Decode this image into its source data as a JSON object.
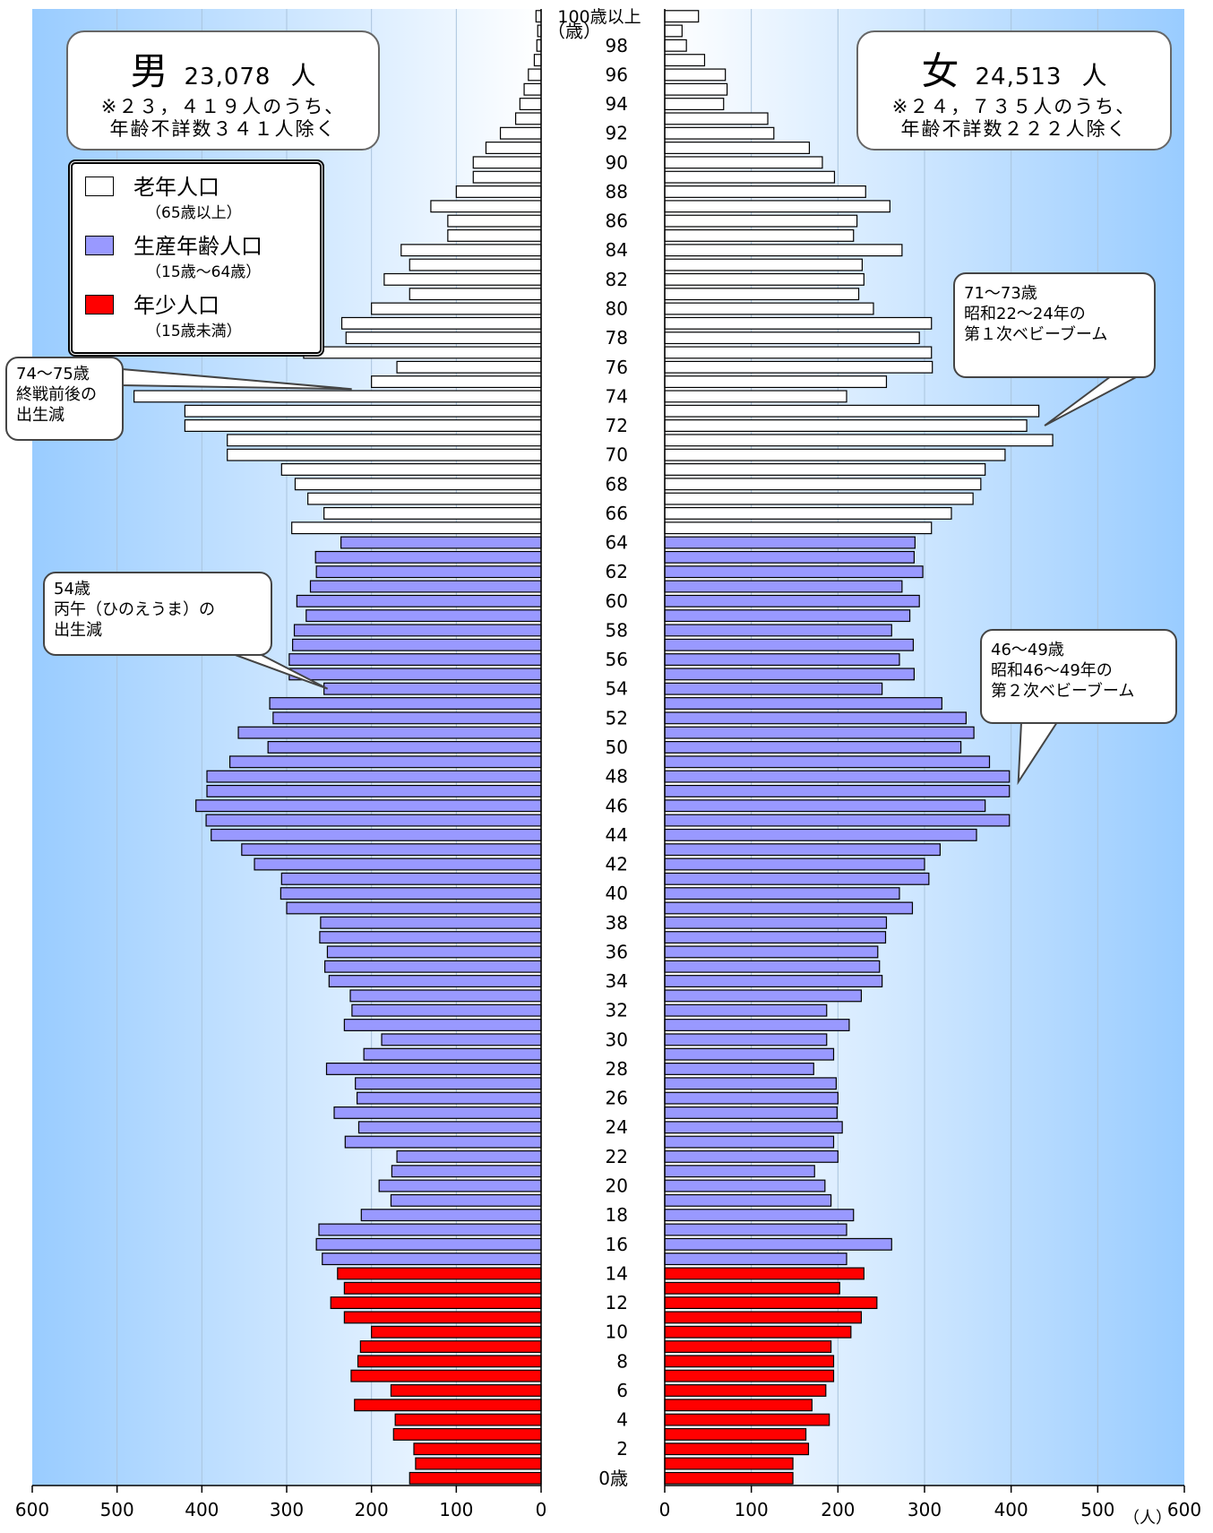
{
  "chart_data": {
    "type": "bar",
    "orientation": "horizontal-population-pyramid",
    "ages": [
      0,
      1,
      2,
      3,
      4,
      5,
      6,
      7,
      8,
      9,
      10,
      11,
      12,
      13,
      14,
      15,
      16,
      17,
      18,
      19,
      20,
      21,
      22,
      23,
      24,
      25,
      26,
      27,
      28,
      29,
      30,
      31,
      32,
      33,
      34,
      35,
      36,
      37,
      38,
      39,
      40,
      41,
      42,
      43,
      44,
      45,
      46,
      47,
      48,
      49,
      50,
      51,
      52,
      53,
      54,
      55,
      56,
      57,
      58,
      59,
      60,
      61,
      62,
      63,
      64,
      65,
      66,
      67,
      68,
      69,
      70,
      71,
      72,
      73,
      74,
      75,
      76,
      77,
      78,
      79,
      80,
      81,
      82,
      83,
      84,
      85,
      86,
      87,
      88,
      89,
      90,
      91,
      92,
      93,
      94,
      95,
      96,
      97,
      98,
      99,
      100
    ],
    "age_tick_labels": [
      {
        "age": 0,
        "text": "0歳"
      },
      {
        "age": 2,
        "text": "2"
      },
      {
        "age": 4,
        "text": "4"
      },
      {
        "age": 6,
        "text": "6"
      },
      {
        "age": 8,
        "text": "8"
      },
      {
        "age": 10,
        "text": "10"
      },
      {
        "age": 12,
        "text": "12"
      },
      {
        "age": 14,
        "text": "14"
      },
      {
        "age": 16,
        "text": "16"
      },
      {
        "age": 18,
        "text": "18"
      },
      {
        "age": 20,
        "text": "20"
      },
      {
        "age": 22,
        "text": "22"
      },
      {
        "age": 24,
        "text": "24"
      },
      {
        "age": 26,
        "text": "26"
      },
      {
        "age": 28,
        "text": "28"
      },
      {
        "age": 30,
        "text": "30"
      },
      {
        "age": 32,
        "text": "32"
      },
      {
        "age": 34,
        "text": "34"
      },
      {
        "age": 36,
        "text": "36"
      },
      {
        "age": 38,
        "text": "38"
      },
      {
        "age": 40,
        "text": "40"
      },
      {
        "age": 42,
        "text": "42"
      },
      {
        "age": 44,
        "text": "44"
      },
      {
        "age": 46,
        "text": "46"
      },
      {
        "age": 48,
        "text": "48"
      },
      {
        "age": 50,
        "text": "50"
      },
      {
        "age": 52,
        "text": "52"
      },
      {
        "age": 54,
        "text": "54"
      },
      {
        "age": 56,
        "text": "56"
      },
      {
        "age": 58,
        "text": "58"
      },
      {
        "age": 60,
        "text": "60"
      },
      {
        "age": 62,
        "text": "62"
      },
      {
        "age": 64,
        "text": "64"
      },
      {
        "age": 66,
        "text": "66"
      },
      {
        "age": 68,
        "text": "68"
      },
      {
        "age": 70,
        "text": "70"
      },
      {
        "age": 72,
        "text": "72"
      },
      {
        "age": 74,
        "text": "74"
      },
      {
        "age": 76,
        "text": "76"
      },
      {
        "age": 78,
        "text": "78"
      },
      {
        "age": 80,
        "text": "80"
      },
      {
        "age": 82,
        "text": "82"
      },
      {
        "age": 84,
        "text": "84"
      },
      {
        "age": 86,
        "text": "86"
      },
      {
        "age": 88,
        "text": "88"
      },
      {
        "age": 90,
        "text": "90"
      },
      {
        "age": 92,
        "text": "92"
      },
      {
        "age": 94,
        "text": "94"
      },
      {
        "age": 96,
        "text": "96"
      },
      {
        "age": 98,
        "text": "98"
      },
      {
        "age": 99,
        "text": "（歳）"
      },
      {
        "age": 100,
        "text": "100歳以上"
      }
    ],
    "series": [
      {
        "name": "男",
        "values": [
          155,
          148,
          150,
          174,
          172,
          220,
          177,
          224,
          216,
          213,
          200,
          232,
          248,
          232,
          240,
          258,
          265,
          262,
          212,
          177,
          191,
          176,
          170,
          231,
          215,
          244,
          217,
          219,
          253,
          209,
          188,
          232,
          223,
          225,
          250,
          255,
          252,
          261,
          260,
          300,
          307,
          306,
          338,
          353,
          389,
          395,
          407,
          394,
          394,
          367,
          322,
          357,
          316,
          320,
          256,
          297,
          297,
          293,
          291,
          277,
          288,
          272,
          265,
          266,
          236,
          294,
          256,
          275,
          290,
          306,
          370,
          370,
          420,
          420,
          480,
          200,
          170,
          280,
          230,
          235,
          200,
          155,
          185,
          155,
          165,
          110,
          110,
          130,
          100,
          80,
          80,
          65,
          48,
          30,
          25,
          20,
          15,
          8,
          5,
          4,
          6
        ]
      },
      {
        "name": "女",
        "values": [
          148,
          148,
          166,
          163,
          190,
          170,
          186,
          195,
          195,
          192,
          215,
          227,
          245,
          202,
          230,
          210,
          262,
          210,
          218,
          192,
          185,
          173,
          200,
          195,
          205,
          199,
          200,
          198,
          172,
          195,
          187,
          213,
          187,
          227,
          251,
          248,
          246,
          255,
          256,
          286,
          271,
          305,
          300,
          318,
          360,
          398,
          370,
          398,
          398,
          375,
          342,
          357,
          348,
          320,
          251,
          288,
          271,
          287,
          262,
          283,
          294,
          274,
          298,
          288,
          289,
          308,
          331,
          356,
          365,
          370,
          393,
          448,
          418,
          432,
          210,
          256,
          309,
          308,
          294,
          308,
          241,
          224,
          230,
          228,
          274,
          218,
          222,
          260,
          232,
          196,
          182,
          167,
          126,
          119,
          68,
          72,
          70,
          46,
          25,
          20,
          39
        ]
      }
    ],
    "age_groups": [
      {
        "name": "老年人口",
        "range": "(65歳以上)",
        "from_age": 65,
        "to_age": 100,
        "color": "#ffffff"
      },
      {
        "name": "生産年齢人口",
        "range": "(15歳〜64歳)",
        "from_age": 15,
        "to_age": 64,
        "color": "#9999ff"
      },
      {
        "name": "年少人口",
        "range": "(15歳未満)",
        "from_age": 0,
        "to_age": 14,
        "color": "#ff0000"
      }
    ],
    "x_left_ticks": [
      "600",
      "500",
      "400",
      "300",
      "200",
      "100",
      "0"
    ],
    "x_right_ticks": [
      "0",
      "100",
      "200",
      "300",
      "400",
      "500",
      "600"
    ],
    "xlim": [
      0,
      600
    ],
    "x_unit": "（人）",
    "grid": true
  },
  "totals": {
    "male": {
      "label": "男",
      "number": "23,078",
      "unit": "人",
      "note1": "※２３，４１９人のうち、",
      "note2": "年齢不詳数３４１人除く"
    },
    "female": {
      "label": "女",
      "number": "24,513",
      "unit": "人",
      "note1": "※２４，７３５人のうち、",
      "note2": "年齢不詳数２２２人除く"
    }
  },
  "legend": {
    "items": [
      {
        "label": "老年人口",
        "sub": "（65歳以上）",
        "color": "#ffffff"
      },
      {
        "label": "生産年齢人口",
        "sub": "（15歳〜64歳）",
        "color": "#9999ff"
      },
      {
        "label": "年少人口",
        "sub": "（15歳未満）",
        "color": "#ff0000"
      }
    ]
  },
  "annotations": {
    "m7475": {
      "line1": "74〜75歳",
      "line2": "終戦前後の",
      "line3": "出生減",
      "age": 74.5,
      "side": "male"
    },
    "m54": {
      "line1": "54歳",
      "line2": "丙午（ひのえうま）の",
      "line3": "出生減",
      "age": 54,
      "side": "male"
    },
    "f7173": {
      "line1": "71〜73歳",
      "line2": "昭和22〜24年の",
      "line3": "第１次ベビーブーム",
      "age": 72,
      "side": "female"
    },
    "f4649": {
      "line1": "46〜49歳",
      "line2": "昭和46〜49年の",
      "line3": "第２次ベビーブーム",
      "age": 48,
      "side": "female"
    }
  }
}
